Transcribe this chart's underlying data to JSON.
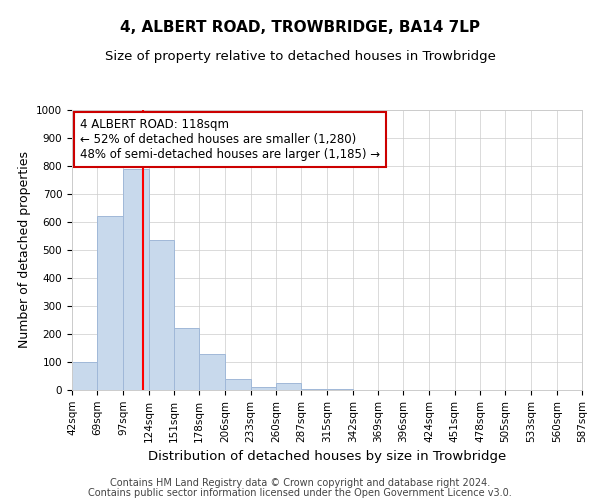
{
  "title": "4, ALBERT ROAD, TROWBRIDGE, BA14 7LP",
  "subtitle": "Size of property relative to detached houses in Trowbridge",
  "xlabel": "Distribution of detached houses by size in Trowbridge",
  "ylabel": "Number of detached properties",
  "footnote1": "Contains HM Land Registry data © Crown copyright and database right 2024.",
  "footnote2": "Contains public sector information licensed under the Open Government Licence v3.0.",
  "bin_labels": [
    "42sqm",
    "69sqm",
    "97sqm",
    "124sqm",
    "151sqm",
    "178sqm",
    "206sqm",
    "233sqm",
    "260sqm",
    "287sqm",
    "315sqm",
    "342sqm",
    "369sqm",
    "396sqm",
    "424sqm",
    "451sqm",
    "478sqm",
    "505sqm",
    "533sqm",
    "560sqm",
    "587sqm"
  ],
  "bin_edges": [
    42,
    69,
    97,
    124,
    151,
    178,
    206,
    233,
    260,
    287,
    315,
    342,
    369,
    396,
    424,
    451,
    478,
    505,
    533,
    560,
    587
  ],
  "bar_heights": [
    100,
    620,
    790,
    535,
    220,
    130,
    40,
    10,
    25,
    5,
    2,
    0,
    0,
    0,
    0,
    0,
    0,
    0,
    0,
    0
  ],
  "bar_color": "#c8d9ec",
  "bar_edge_color": "#a0b8d8",
  "ylim": [
    0,
    1000
  ],
  "red_line_x": 118,
  "annotation_text_line1": "4 ALBERT ROAD: 118sqm",
  "annotation_text_line2": "← 52% of detached houses are smaller (1,280)",
  "annotation_text_line3": "48% of semi-detached houses are larger (1,185) →",
  "annotation_box_color": "#ffffff",
  "annotation_border_color": "#cc0000",
  "title_fontsize": 11,
  "subtitle_fontsize": 9.5,
  "ylabel_fontsize": 9,
  "xlabel_fontsize": 9.5,
  "tick_fontsize": 7.5,
  "annotation_fontsize": 8.5,
  "footnote_fontsize": 7
}
